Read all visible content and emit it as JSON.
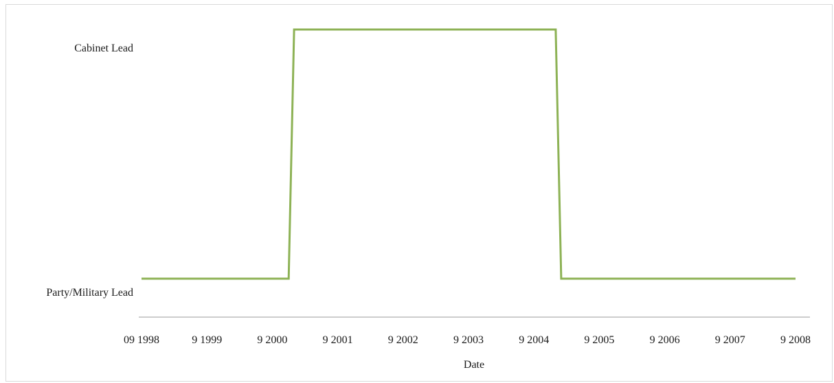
{
  "chart_data": {
    "type": "line",
    "title": "",
    "xlabel": "Date",
    "ylabel": "",
    "x_ticks": [
      "09 1998",
      "9 1999",
      "9 2000",
      "9 2001",
      "9 2002",
      "9 2003",
      "9 2004",
      "9 2005",
      "9 2006",
      "9 2007",
      "9 2008"
    ],
    "y_categories": [
      "Party/Military Lead",
      "Cabinet Lead"
    ],
    "grid": false,
    "legend": "none",
    "series": [
      {
        "color": "#8db255",
        "points": [
          {
            "x": "1998-09",
            "y": "Party/Military Lead"
          },
          {
            "x": "2000-12",
            "y": "Party/Military Lead"
          },
          {
            "x": "2001-01",
            "y": "Cabinet Lead"
          },
          {
            "x": "2005-01",
            "y": "Cabinet Lead"
          },
          {
            "x": "2005-02",
            "y": "Party/Military Lead"
          },
          {
            "x": "2008-09",
            "y": "Party/Military Lead"
          }
        ]
      }
    ]
  }
}
